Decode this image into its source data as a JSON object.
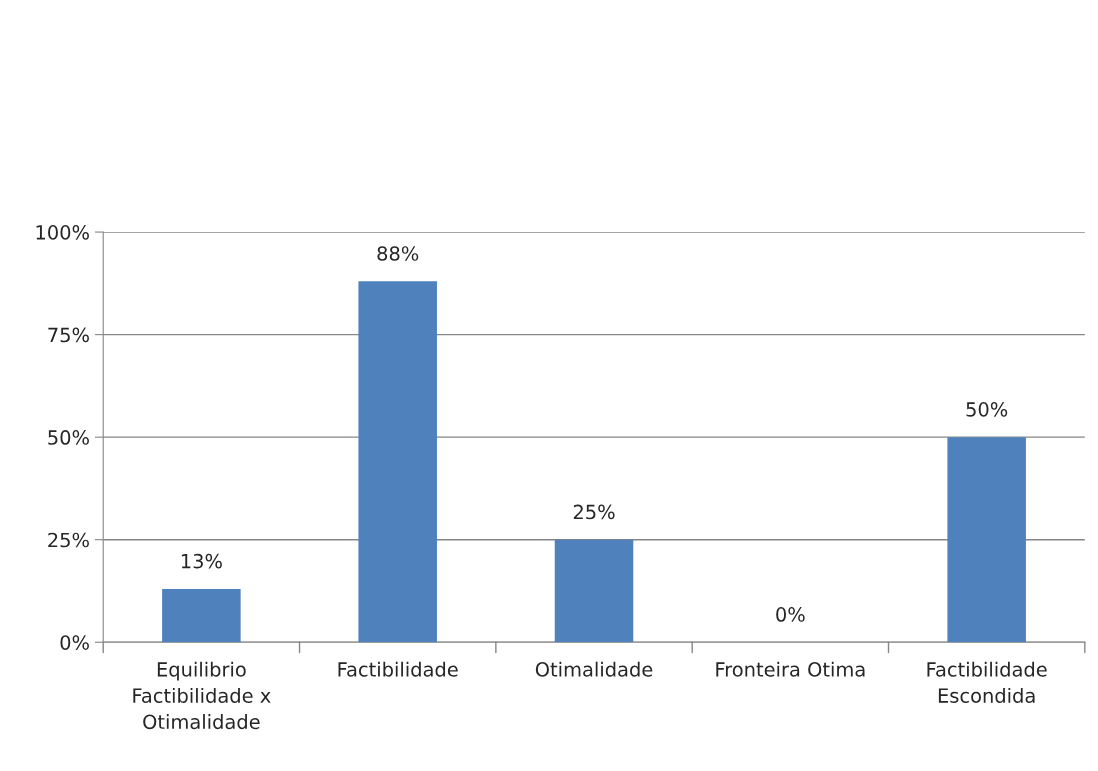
{
  "chart_data": {
    "type": "bar",
    "categories": [
      "Equilibrio\nFactibilidade x\nOtimalidade",
      "Factibilidade",
      "Otimalidade",
      "Fronteira Otima",
      "Factibilidade\nEscondida"
    ],
    "values": [
      13,
      88,
      25,
      0,
      50
    ],
    "value_labels": [
      "13%",
      "88%",
      "25%",
      "0%",
      "50%"
    ],
    "color": "#4f81bd",
    "ylim": [
      0,
      100
    ],
    "yticks": [
      {
        "value": 0,
        "label": "0%"
      },
      {
        "value": 25,
        "label": "25%"
      },
      {
        "value": 50,
        "label": "50%"
      },
      {
        "value": 75,
        "label": "75%"
      },
      {
        "value": 100,
        "label": "100%"
      }
    ],
    "grid": "y",
    "legend": false
  }
}
